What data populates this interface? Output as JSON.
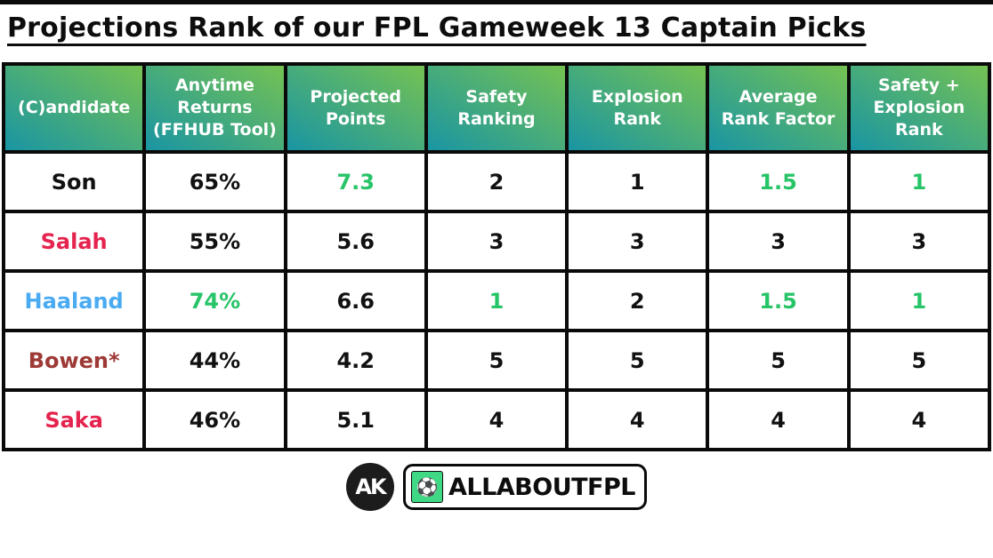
{
  "page": {
    "title": "Projections Rank of our FPL Gameweek 13 Captain Picks"
  },
  "colors": {
    "accent_green": "#27c468",
    "crimson": "#e5234e",
    "sky_blue": "#4aabf2",
    "claret": "#9e3a36",
    "header_gradient_teal": "#1995a3",
    "header_gradient_green": "#75c253",
    "badge_green": "#3fd884",
    "text_black": "#111111"
  },
  "table": {
    "headers": [
      "(C)andidate",
      "Anytime Returns (FFHUB Tool)",
      "Projected Points",
      "Safety Ranking",
      "Explosion Rank",
      "Average Rank Factor",
      "Safety + Explosion Rank"
    ],
    "rows": [
      {
        "cells": [
          {
            "text": "Son",
            "color": "black"
          },
          {
            "text": "65%",
            "color": "black"
          },
          {
            "text": "7.3",
            "color": "green"
          },
          {
            "text": "2",
            "color": "black"
          },
          {
            "text": "1",
            "color": "black"
          },
          {
            "text": "1.5",
            "color": "green"
          },
          {
            "text": "1",
            "color": "green"
          }
        ]
      },
      {
        "cells": [
          {
            "text": "Salah",
            "color": "crimson"
          },
          {
            "text": "55%",
            "color": "black"
          },
          {
            "text": "5.6",
            "color": "black"
          },
          {
            "text": "3",
            "color": "black"
          },
          {
            "text": "3",
            "color": "black"
          },
          {
            "text": "3",
            "color": "black"
          },
          {
            "text": "3",
            "color": "black"
          }
        ]
      },
      {
        "cells": [
          {
            "text": "Haaland",
            "color": "blue"
          },
          {
            "text": "74%",
            "color": "green"
          },
          {
            "text": "6.6",
            "color": "black"
          },
          {
            "text": "1",
            "color": "green"
          },
          {
            "text": "2",
            "color": "black"
          },
          {
            "text": "1.5",
            "color": "green"
          },
          {
            "text": "1",
            "color": "green"
          }
        ]
      },
      {
        "cells": [
          {
            "text": "Bowen*",
            "color": "claret"
          },
          {
            "text": "44%",
            "color": "black"
          },
          {
            "text": "4.2",
            "color": "black"
          },
          {
            "text": "5",
            "color": "black"
          },
          {
            "text": "5",
            "color": "black"
          },
          {
            "text": "5",
            "color": "black"
          },
          {
            "text": "5",
            "color": "black"
          }
        ]
      },
      {
        "cells": [
          {
            "text": "Saka",
            "color": "crimson"
          },
          {
            "text": "46%",
            "color": "black"
          },
          {
            "text": "5.1",
            "color": "black"
          },
          {
            "text": "4",
            "color": "black"
          },
          {
            "text": "4",
            "color": "black"
          },
          {
            "text": "4",
            "color": "black"
          },
          {
            "text": "4",
            "color": "black"
          }
        ]
      }
    ]
  },
  "chart_data": {
    "type": "table",
    "title": "Projections Rank of our FPL Gameweek 13 Captain Picks",
    "columns": [
      "(C)andidate",
      "Anytime Returns (FFHUB Tool)",
      "Projected Points",
      "Safety Ranking",
      "Explosion Rank",
      "Average Rank Factor",
      "Safety + Explosion Rank"
    ],
    "rows": [
      [
        "Son",
        "65%",
        "7.3",
        "2",
        "1",
        "1.5",
        "1"
      ],
      [
        "Salah",
        "55%",
        "5.6",
        "3",
        "3",
        "3",
        "3"
      ],
      [
        "Haaland",
        "74%",
        "6.6",
        "1",
        "2",
        "1.5",
        "1"
      ],
      [
        "Bowen*",
        "44%",
        "4.2",
        "5",
        "5",
        "5",
        "5"
      ],
      [
        "Saka",
        "46%",
        "5.1",
        "4",
        "4",
        "4",
        "4"
      ]
    ]
  },
  "footer": {
    "ak_monogram": "AK",
    "football_icon": "⚽",
    "brand": "ALLABOUTFPL"
  }
}
